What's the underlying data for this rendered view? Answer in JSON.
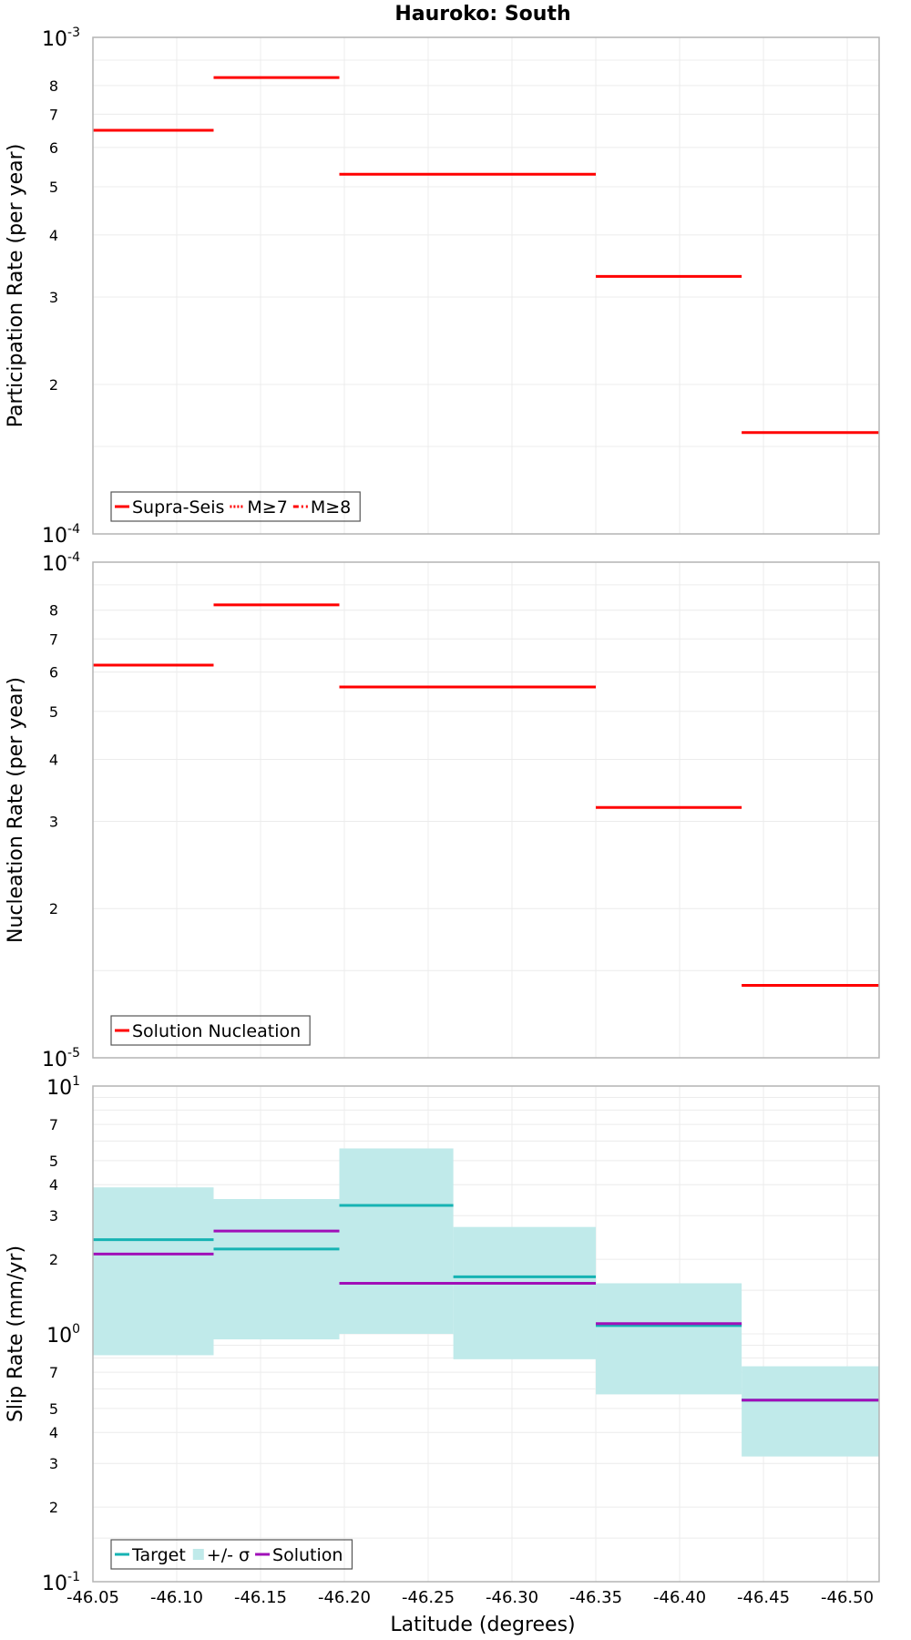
{
  "chart_data": {
    "title": "Hauroko: South",
    "xlabel": "Latitude (degrees)",
    "x_ticks": [
      "-46.05",
      "-46.10",
      "-46.15",
      "-46.20",
      "-46.25",
      "-46.30",
      "-46.35",
      "-46.40",
      "-46.45",
      "-46.50"
    ],
    "x_tick_values": [
      -46.05,
      -46.1,
      -46.15,
      -46.2,
      -46.25,
      -46.3,
      -46.35,
      -46.4,
      -46.45,
      -46.5
    ],
    "xlim": [
      -46.05,
      -46.519
    ],
    "grid": true,
    "legend_position": "bottom-left",
    "colors": {
      "red": "#ff0000",
      "target": "#16b3b3",
      "sigma": "#c0eaea",
      "solution": "#a010b8"
    },
    "panels": [
      {
        "id": "participation",
        "type": "step",
        "ylabel": "Participation Rate (per year)",
        "yscale": "log",
        "ylim": [
          0.0001,
          0.001
        ],
        "y_major_labels": [
          {
            "base": "10",
            "exp": "-3",
            "value": 0.001
          },
          {
            "base": "10",
            "exp": "-4",
            "value": 0.0001
          }
        ],
        "y_minor_labels": [
          {
            "label": "8",
            "value": 0.0008
          },
          {
            "label": "7",
            "value": 0.0007
          },
          {
            "label": "6",
            "value": 0.0006
          },
          {
            "label": "5",
            "value": 0.0005
          },
          {
            "label": "4",
            "value": 0.0004
          },
          {
            "label": "3",
            "value": 0.0003
          },
          {
            "label": "2",
            "value": 0.0002
          }
        ],
        "series": [
          {
            "name": "Supra-Seis",
            "style": "solid",
            "color": "#ff0000",
            "segments": [
              {
                "x0": -46.05,
                "x1": -46.122,
                "y": 0.00065
              },
              {
                "x0": -46.122,
                "x1": -46.197,
                "y": 0.00083
              },
              {
                "x0": -46.197,
                "x1": -46.35,
                "y": 0.00053
              },
              {
                "x0": -46.35,
                "x1": -46.437,
                "y": 0.00033
              },
              {
                "x0": -46.437,
                "x1": -46.519,
                "y": 0.00016
              }
            ]
          }
        ],
        "legend": [
          {
            "label": "Supra-Seis",
            "style": "solid",
            "color": "#ff0000"
          },
          {
            "label": "M≥7",
            "style": "dotted",
            "color": "#ff0000"
          },
          {
            "label": "M≥8",
            "style": "dashdot",
            "color": "#ff0000"
          }
        ]
      },
      {
        "id": "nucleation",
        "type": "step",
        "ylabel": "Nucleation Rate (per year)",
        "yscale": "log",
        "ylim": [
          1e-05,
          0.0001
        ],
        "y_major_labels": [
          {
            "base": "10",
            "exp": "-4",
            "value": 0.0001
          },
          {
            "base": "10",
            "exp": "-5",
            "value": 1e-05
          }
        ],
        "y_minor_labels": [
          {
            "label": "8",
            "value": 8e-05
          },
          {
            "label": "7",
            "value": 7e-05
          },
          {
            "label": "6",
            "value": 6e-05
          },
          {
            "label": "5",
            "value": 5e-05
          },
          {
            "label": "4",
            "value": 4e-05
          },
          {
            "label": "3",
            "value": 3e-05
          },
          {
            "label": "2",
            "value": 2e-05
          }
        ],
        "series": [
          {
            "name": "Solution Nucleation",
            "style": "solid",
            "color": "#ff0000",
            "segments": [
              {
                "x0": -46.05,
                "x1": -46.122,
                "y": 6.2e-05
              },
              {
                "x0": -46.122,
                "x1": -46.197,
                "y": 8.2e-05
              },
              {
                "x0": -46.197,
                "x1": -46.35,
                "y": 5.6e-05
              },
              {
                "x0": -46.35,
                "x1": -46.437,
                "y": 3.2e-05
              },
              {
                "x0": -46.437,
                "x1": -46.519,
                "y": 1.4e-05
              }
            ]
          }
        ],
        "legend": [
          {
            "label": "Solution Nucleation",
            "style": "solid",
            "color": "#ff0000"
          }
        ]
      },
      {
        "id": "slip",
        "type": "step",
        "ylabel": "Slip Rate (mm/yr)",
        "yscale": "log",
        "ylim": [
          0.1,
          10
        ],
        "y_major_labels": [
          {
            "base": "10",
            "exp": "1",
            "value": 10
          },
          {
            "base": "10",
            "exp": "0",
            "value": 1
          },
          {
            "base": "10",
            "exp": "-1",
            "value": 0.1
          }
        ],
        "y_minor_labels": [
          {
            "label": "7",
            "value": 7
          },
          {
            "label": "5",
            "value": 5
          },
          {
            "label": "4",
            "value": 4
          },
          {
            "label": "3",
            "value": 3
          },
          {
            "label": "2",
            "value": 2
          },
          {
            "label": "7",
            "value": 0.7
          },
          {
            "label": "5",
            "value": 0.5
          },
          {
            "label": "4",
            "value": 0.4
          },
          {
            "label": "3",
            "value": 0.3
          },
          {
            "label": "2",
            "value": 0.2
          }
        ],
        "bands": [
          {
            "x0": -46.05,
            "x1": -46.122,
            "low": 0.82,
            "high": 3.9
          },
          {
            "x0": -46.122,
            "x1": -46.197,
            "low": 0.95,
            "high": 3.5
          },
          {
            "x0": -46.197,
            "x1": -46.265,
            "low": 1.0,
            "high": 5.6
          },
          {
            "x0": -46.265,
            "x1": -46.35,
            "low": 0.79,
            "high": 2.7
          },
          {
            "x0": -46.35,
            "x1": -46.437,
            "low": 0.57,
            "high": 1.6
          },
          {
            "x0": -46.437,
            "x1": -46.519,
            "low": 0.32,
            "high": 0.74
          }
        ],
        "series": [
          {
            "name": "Target",
            "style": "solid",
            "color": "#16b3b3",
            "segments": [
              {
                "x0": -46.05,
                "x1": -46.122,
                "y": 2.4
              },
              {
                "x0": -46.122,
                "x1": -46.197,
                "y": 2.2
              },
              {
                "x0": -46.197,
                "x1": -46.265,
                "y": 3.3
              },
              {
                "x0": -46.265,
                "x1": -46.35,
                "y": 1.7
              },
              {
                "x0": -46.35,
                "x1": -46.437,
                "y": 1.08
              },
              {
                "x0": -46.437,
                "x1": -46.519,
                "y": 0.54
              }
            ]
          },
          {
            "name": "Solution",
            "style": "solid",
            "color": "#a010b8",
            "segments": [
              {
                "x0": -46.05,
                "x1": -46.122,
                "y": 2.1
              },
              {
                "x0": -46.122,
                "x1": -46.197,
                "y": 2.6
              },
              {
                "x0": -46.197,
                "x1": -46.35,
                "y": 1.6
              },
              {
                "x0": -46.35,
                "x1": -46.437,
                "y": 1.1
              },
              {
                "x0": -46.437,
                "x1": -46.519,
                "y": 0.54
              }
            ]
          }
        ],
        "legend": [
          {
            "label": "Target",
            "style": "solid",
            "color": "#16b3b3"
          },
          {
            "label": "+/- σ",
            "style": "box",
            "color": "#c0eaea"
          },
          {
            "label": "Solution",
            "style": "solid",
            "color": "#a010b8"
          }
        ]
      }
    ]
  }
}
